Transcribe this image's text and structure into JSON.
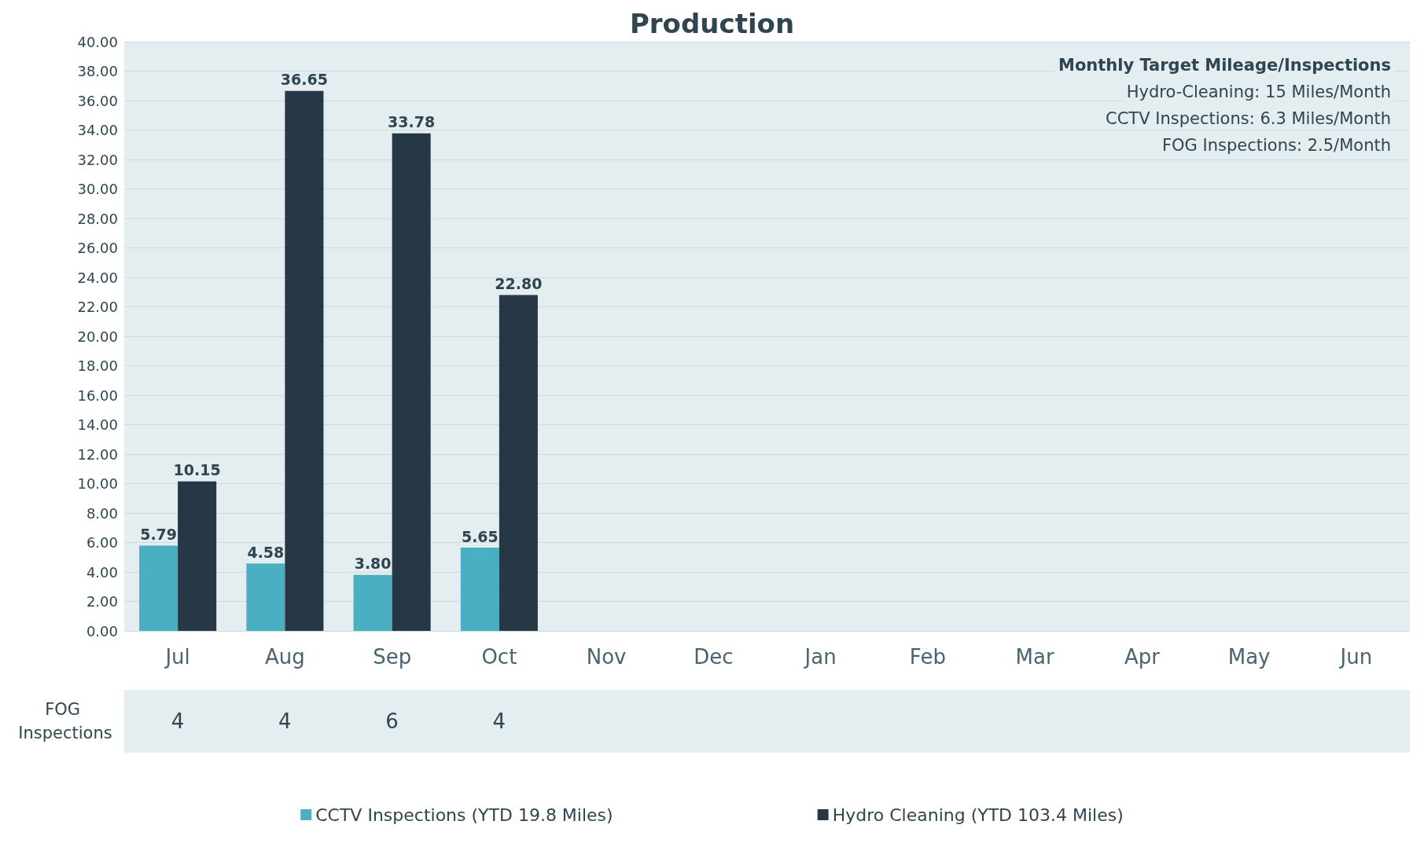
{
  "chart_data": {
    "type": "bar",
    "title": "Production",
    "categories": [
      "Jul",
      "Aug",
      "Sep",
      "Oct",
      "Nov",
      "Dec",
      "Jan",
      "Feb",
      "Mar",
      "Apr",
      "May",
      "Jun"
    ],
    "series": [
      {
        "name": "CCTV Inspections (YTD 19.8 Miles)",
        "color": "#4aafc0",
        "values": [
          5.79,
          4.58,
          3.8,
          5.65,
          null,
          null,
          null,
          null,
          null,
          null,
          null,
          null
        ],
        "value_labels": [
          "5.79",
          "4.58",
          "3.80",
          "5.65",
          null,
          null,
          null,
          null,
          null,
          null,
          null,
          null
        ]
      },
      {
        "name": "Hydro Cleaning (YTD 103.4 Miles)",
        "color": "#263846",
        "values": [
          10.15,
          36.65,
          33.78,
          22.8,
          null,
          null,
          null,
          null,
          null,
          null,
          null,
          null
        ],
        "value_labels": [
          "10.15",
          "36.65",
          "33.78",
          "22.80",
          null,
          null,
          null,
          null,
          null,
          null,
          null,
          null
        ]
      }
    ],
    "ylim": [
      0,
      40
    ],
    "yticks": [
      {
        "value": 0,
        "label": "0.00"
      },
      {
        "value": 2,
        "label": "2.00"
      },
      {
        "value": 4,
        "label": "4.00"
      },
      {
        "value": 6,
        "label": "6.00"
      },
      {
        "value": 8,
        "label": "8.00"
      },
      {
        "value": 10,
        "label": "10.00"
      },
      {
        "value": 12,
        "label": "12.00"
      },
      {
        "value": 14,
        "label": "14.00"
      },
      {
        "value": 16,
        "label": "16.00"
      },
      {
        "value": 18,
        "label": "18.00"
      },
      {
        "value": 20,
        "label": "20.00"
      },
      {
        "value": 22,
        "label": "22.00"
      },
      {
        "value": 24,
        "label": "24.00"
      },
      {
        "value": 26,
        "label": "26.00"
      },
      {
        "value": 28,
        "label": "28.00"
      },
      {
        "value": 30,
        "label": "30.00"
      },
      {
        "value": 32,
        "label": "32.00"
      },
      {
        "value": 34,
        "label": "34.00"
      },
      {
        "value": 36,
        "label": "36.00"
      },
      {
        "value": 38,
        "label": "38.00"
      },
      {
        "value": 40,
        "label": "40.00"
      }
    ],
    "grid": "y",
    "legend": "bottom",
    "annotations": [
      "Monthly Target Mileage/Inspections",
      "Hydro-Cleaning: 15 Miles/Month",
      "CCTV Inspections: 6.3 Miles/Month",
      "FOG Inspections: 2.5/Month",
      "FOG Inspections",
      "4",
      "4",
      "6",
      "4"
    ]
  }
}
